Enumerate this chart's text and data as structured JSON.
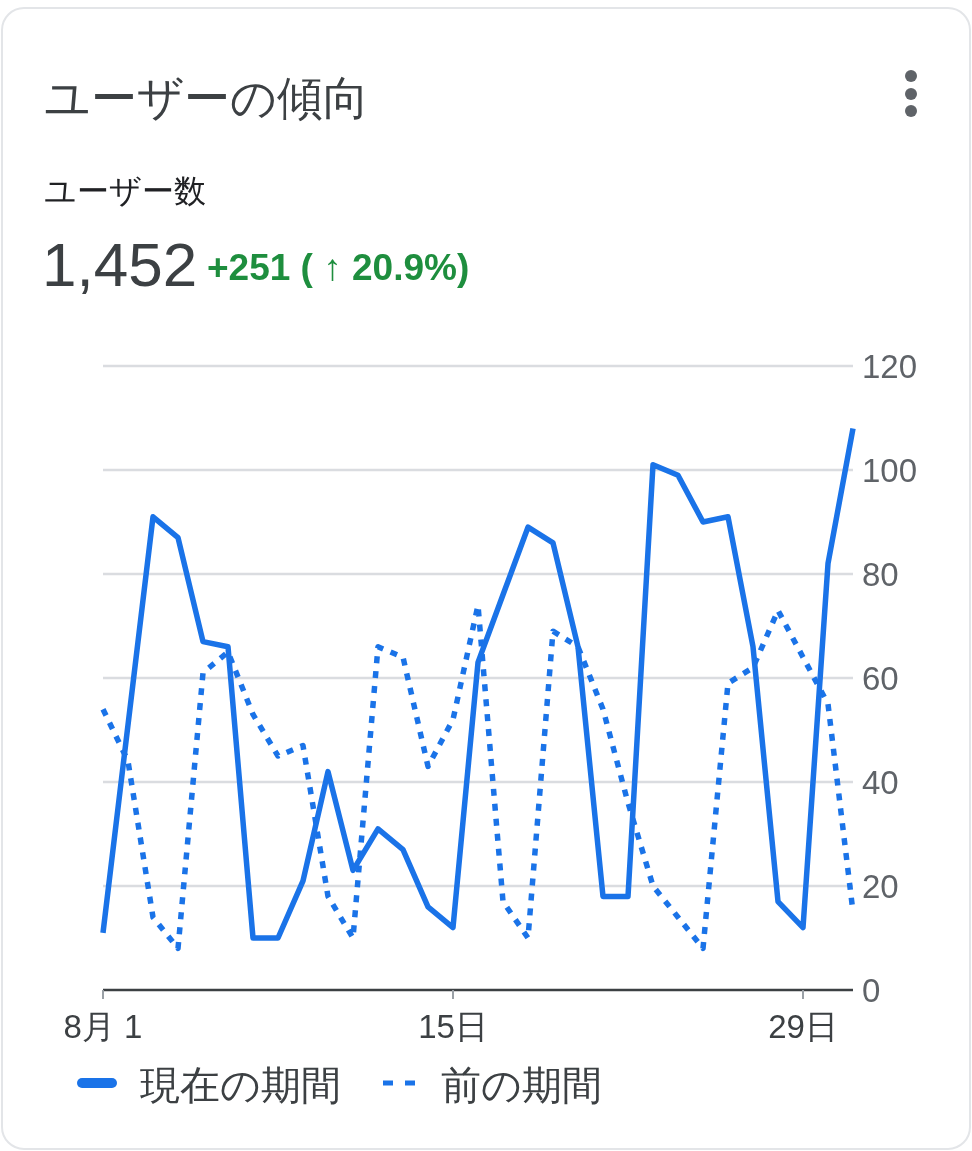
{
  "chart_data": {
    "type": "line",
    "title": "ユーザーの傾向",
    "subtitle": "ユーザー数",
    "annotations": [
      "1,452",
      "+251 ( ↑ 20.9%)"
    ],
    "x": [
      1,
      2,
      3,
      4,
      5,
      6,
      7,
      8,
      9,
      10,
      11,
      12,
      13,
      14,
      15,
      16,
      17,
      18,
      19,
      20,
      21,
      22,
      23,
      24,
      25,
      26,
      27,
      28,
      29,
      30,
      31
    ],
    "xlim": [
      1,
      31
    ],
    "xticks": [
      {
        "value": 1,
        "label": "8月 1"
      },
      {
        "value": 15,
        "label": "15日"
      },
      {
        "value": 29,
        "label": "29日"
      }
    ],
    "ylim": [
      0,
      120
    ],
    "yticks": [
      0,
      20,
      40,
      60,
      80,
      100,
      120
    ],
    "grid": "y",
    "legend": "bottom",
    "series": [
      {
        "name": "現在の期間",
        "color": "#1a73e8",
        "line_style": "solid",
        "values": [
          11,
          51,
          91,
          87,
          67,
          66,
          10,
          10,
          21,
          42,
          23,
          31,
          27,
          16,
          12,
          63,
          76,
          89,
          86,
          66,
          18,
          18,
          101,
          99,
          90,
          91,
          66,
          17,
          12,
          82,
          108
        ]
      },
      {
        "name": "前の期間",
        "color": "#1a73e8",
        "line_style": "dotted",
        "values": [
          54,
          44,
          14,
          8,
          61,
          65,
          53,
          45,
          47,
          18,
          10,
          66,
          64,
          43,
          52,
          74,
          17,
          10,
          69,
          66,
          54,
          36,
          20,
          14,
          8,
          59,
          62,
          73,
          64,
          55,
          15
        ]
      }
    ]
  }
}
